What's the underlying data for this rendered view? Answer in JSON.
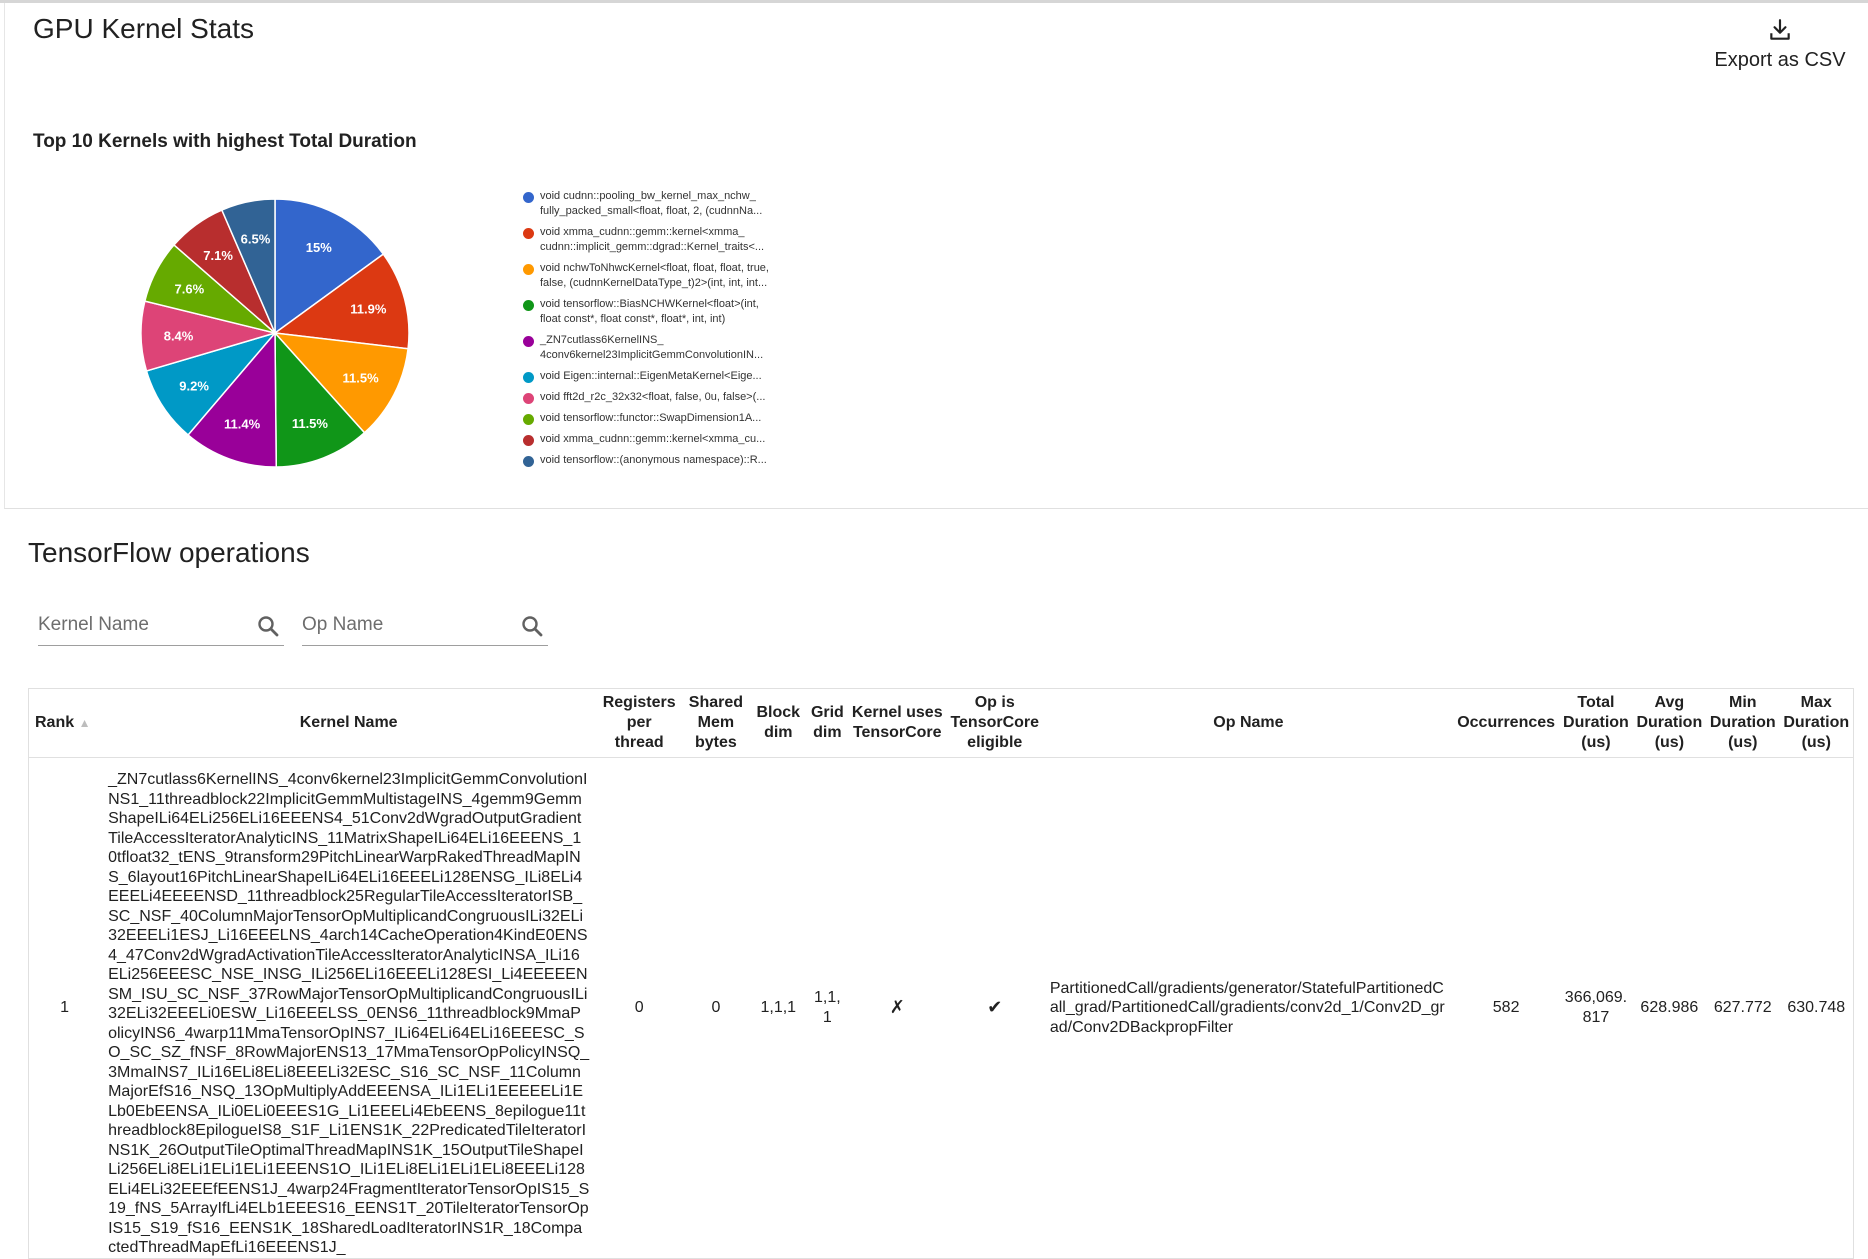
{
  "page_title": "GPU Kernel Stats",
  "export": {
    "label": "Export as CSV",
    "icon": "download-icon"
  },
  "chart_title": "Top 10 Kernels with highest Total Duration",
  "chart_data": {
    "type": "pie",
    "title": "Top 10 Kernels with highest Total Duration",
    "legend_position": "right",
    "slices": [
      {
        "label": "void cudnn::pooling_bw_kernel_max_nchw_\nfully_packed_small<float, float, 2, (cudnnNa...",
        "value": 15,
        "display": "15%",
        "color": "#3366cc"
      },
      {
        "label": "void xmma_cudnn::gemm::kernel<xmma_\ncudnn::implicit_gemm::dgrad::Kernel_traits<...",
        "value": 11.9,
        "display": "11.9%",
        "color": "#dc3912"
      },
      {
        "label": "void nchwToNhwcKernel<float, float, float, true,\nfalse, (cudnnKernelDataType_t)2>(int, int, int...",
        "value": 11.5,
        "display": "11.5%",
        "color": "#ff9900"
      },
      {
        "label": "void tensorflow::BiasNCHWKernel<float>(int,\nfloat const*, float const*, float*, int, int)",
        "value": 11.5,
        "display": "11.5%",
        "color": "#109618"
      },
      {
        "label": "_ZN7cutlass6KernelINS_\n4conv6kernel23ImplicitGemmConvolutionIN...",
        "value": 11.4,
        "display": "11.4%",
        "color": "#990099"
      },
      {
        "label": "void Eigen::internal::EigenMetaKernel<Eige...",
        "value": 9.2,
        "display": "9.2%",
        "color": "#0099c6"
      },
      {
        "label": "void fft2d_r2c_32x32<float, false, 0u, false>(...",
        "value": 8.4,
        "display": "8.4%",
        "color": "#dd4477"
      },
      {
        "label": "void tensorflow::functor::SwapDimension1A...",
        "value": 7.6,
        "display": "7.6%",
        "color": "#66aa00"
      },
      {
        "label": "void xmma_cudnn::gemm::kernel<xmma_cu...",
        "value": 7.1,
        "display": "7.1%",
        "color": "#b82e2e"
      },
      {
        "label": "void tensorflow::(anonymous namespace)::R...",
        "value": 6.5,
        "display": "6.5%",
        "color": "#316395"
      }
    ]
  },
  "section_title": "TensorFlow operations",
  "filters": {
    "kernel_name_placeholder": "Kernel Name",
    "op_name_placeholder": "Op Name",
    "icon": "search-icon"
  },
  "table": {
    "headers": {
      "rank": "Rank",
      "kernel_name": "Kernel Name",
      "registers": "Registers per thread",
      "shared_mem": "Shared Mem bytes",
      "block_dim": "Block dim",
      "grid_dim": "Grid dim",
      "uses_tc": "Kernel uses TensorCore",
      "tc_eligible": "Op is TensorCore eligible",
      "op_name": "Op Name",
      "occurrences": "Occurrences",
      "total_duration": "Total Duration (us)",
      "avg_duration": "Avg Duration (us)",
      "min_duration": "Min Duration (us)",
      "max_duration": "Max Duration (us)"
    },
    "sort_indicator": "▲",
    "rows": [
      {
        "rank": "1",
        "kernel_name": "_ZN7cutlass6KernelINS_4conv6kernel23ImplicitGemmConvolutionINS1_11threadblock22ImplicitGemmMultistageINS_4gemm9GemmShapeILi64ELi256ELi16EEENS4_51Conv2dWgradOutputGradientTileAccessIteratorAnalyticINS_11MatrixShapeILi64ELi16EEENS_10tfloat32_tENS_9transform29PitchLinearWarpRakedThreadMapINS_6layout16PitchLinearShapeILi64ELi16EEELi128ENSG_ILi8ELi4EEELi4EEEENSD_11threadblock25RegularTileAccessIteratorISB_SC_NSF_40ColumnMajorTensorOpMultiplicandCongruousILi32ELi32EEELi1ESJ_Li16EEELNS_4arch14CacheOperation4KindE0ENS4_47Conv2dWgradActivationTileAccessIteratorAnalyticINSA_ILi16ELi256EEESC_NSE_INSG_ILi256ELi16EEELi128ESI_Li4EEEEENSM_ISU_SC_NSF_37RowMajorTensorOpMultiplicandCongruousILi32ELi32EEELi0ESW_Li16EEELSS_0ENS6_11threadblock9MmaPolicyINS6_4warp11MmaTensorOpINS7_ILi64ELi64ELi16EEESC_SO_SC_SZ_fNSF_8RowMajorENS13_17MmaTensorOpPolicyINSQ_3MmaINS7_ILi16ELi8ELi8EEELi32ESC_S16_SC_NSF_11ColumnMajorEfS16_NSQ_13OpMultiplyAddEEENSA_ILi1ELi1EEEEELi1ELb0EbEENSA_ILi0ELi0EEES1G_Li1EEELi4EbEENS_8epilogue11threadblock8EpilogueIS8_S1F_Li1ENS1K_22PredicatedTileIteratorINS1K_26OutputTileOptimalThreadMapINS1K_15OutputTileShapeILi256ELi8ELi1ELi1ELi1EEENS1O_ILi1ELi8ELi1ELi1ELi8EEELi128ELi4ELi32EEEfEENS1J_4warp24FragmentIteratorTensorOpIS15_S19_fNS_5ArrayIfLi4ELb1EEES16_EENS1T_20TileIteratorTensorOpIS15_S19_fS16_EENS1K_18SharedLoadIteratorINS1R_18CompactedThreadMapEfLi16EEENS1J_",
        "registers": "0",
        "shared_mem": "0",
        "block_dim": "1,1,1",
        "grid_dim": "1,1,\n1",
        "uses_tc": "✗",
        "tc_eligible": "✔",
        "op_name": "PartitionedCall/gradients/generator/StatefulPartitionedCall_grad/PartitionedCall/gradients/conv2d_1/Conv2D_grad/Conv2DBackpropFilter",
        "occurrences": "582",
        "total_duration": "366,069.\n817",
        "avg_duration": "628.986",
        "min_duration": "627.772",
        "max_duration": "630.748"
      }
    ]
  }
}
